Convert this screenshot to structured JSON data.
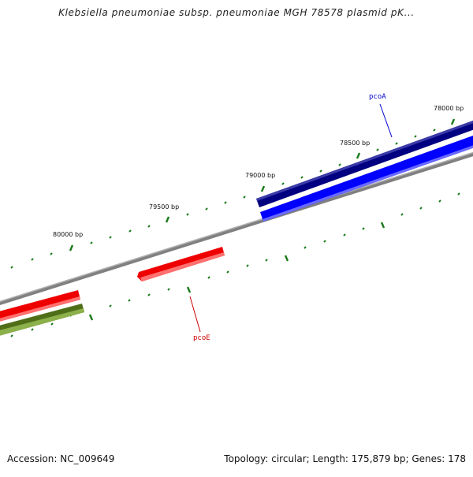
{
  "title": "Klebsiella pneumoniae subsp. pneumoniae MGH 78578 plasmid pK...",
  "footer": {
    "accession": "Accession: NC_009649",
    "summary": "Topology: circular; Length: 175,879 bp; Genes: 178"
  },
  "scale_labels": [
    "78000 bp",
    "78500 bp",
    "79000 bp",
    "79500 bp",
    "80000 bp"
  ],
  "genes": [
    {
      "label": "pcoA",
      "color": "#0000cc"
    },
    {
      "label": "pcoE",
      "color": "#cc0000"
    }
  ],
  "colors": {
    "backbone": "#808080",
    "tick": "#1a7a1a",
    "feature_dark_blue": "#000080",
    "feature_blue": "#0000ff",
    "feature_red": "#ff0000",
    "feature_olive": "#6b8e23"
  }
}
